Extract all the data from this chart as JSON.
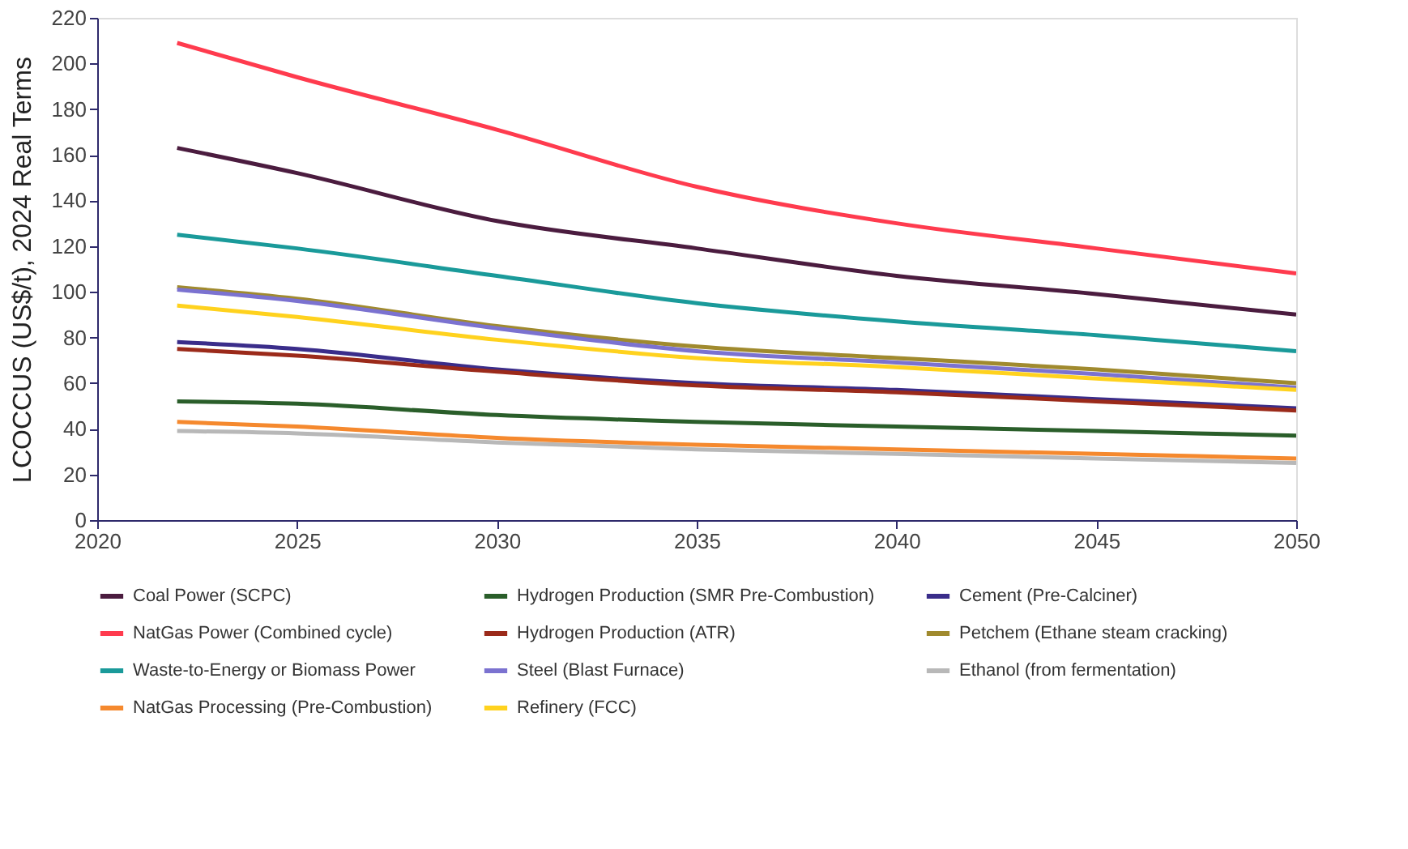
{
  "chart_data": {
    "type": "line",
    "ylabel": "LCOCCUS (US$/t), 2024 Real Terms",
    "x": [
      2022,
      2025,
      2030,
      2035,
      2040,
      2045,
      2050
    ],
    "xlim": [
      2020,
      2050
    ],
    "xticks": [
      2020,
      2025,
      2030,
      2035,
      2040,
      2045,
      2050
    ],
    "ylim": [
      0,
      220
    ],
    "yticks": [
      0,
      20,
      40,
      60,
      80,
      100,
      120,
      140,
      160,
      180,
      200,
      220
    ],
    "grid": false,
    "legend": "bottom",
    "series": [
      {
        "name": "Coal Power (SCPC)",
        "color": "#4b1c3f",
        "values": [
          163,
          152,
          131,
          119,
          107,
          99,
          90
        ]
      },
      {
        "name": "Hydrogen Production (SMR Pre-Combustion)",
        "color": "#2a5e2a",
        "values": [
          52,
          51,
          46,
          43,
          41,
          39,
          37
        ]
      },
      {
        "name": "Cement (Pre-Calciner)",
        "color": "#3a2d8a",
        "values": [
          78,
          75,
          66,
          60,
          57,
          53,
          49
        ]
      },
      {
        "name": "NatGas Power (Combined cycle)",
        "color": "#ff3b4e",
        "values": [
          209,
          194,
          171,
          146,
          130,
          119,
          108
        ]
      },
      {
        "name": "Hydrogen Production (ATR)",
        "color": "#9b2a1a",
        "values": [
          75,
          72,
          65,
          59,
          56,
          52,
          48
        ]
      },
      {
        "name": "Petchem (Ethane steam cracking)",
        "color": "#a08a2e",
        "values": [
          102,
          97,
          85,
          76,
          71,
          66,
          60
        ]
      },
      {
        "name": "Waste-to-Energy or Biomass Power",
        "color": "#1a9a9a",
        "values": [
          125,
          119,
          107,
          95,
          87,
          81,
          74
        ]
      },
      {
        "name": "Steel (Blast Furnace)",
        "color": "#7b72d0",
        "values": [
          101,
          96,
          84,
          74,
          69,
          64,
          58
        ]
      },
      {
        "name": "Ethanol (from fermentation)",
        "color": "#b8b8b8",
        "values": [
          39,
          38,
          34,
          31,
          29,
          27,
          25
        ]
      },
      {
        "name": "NatGas Processing (Pre-Combustion)",
        "color": "#f5892e",
        "values": [
          43,
          41,
          36,
          33,
          31,
          29,
          27
        ]
      },
      {
        "name": "Refinery (FCC)",
        "color": "#ffd21e",
        "values": [
          94,
          89,
          79,
          71,
          67,
          62,
          57
        ]
      }
    ]
  }
}
